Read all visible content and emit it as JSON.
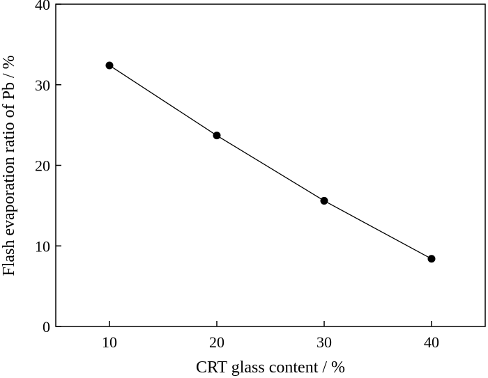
{
  "chart_data": {
    "type": "line",
    "title": "",
    "xlabel": "CRT glass content / %",
    "ylabel": "Flash evaporation ratio of Pb / %",
    "xlim": [
      5,
      45
    ],
    "ylim": [
      0,
      40
    ],
    "xticks": [
      10,
      20,
      30,
      40
    ],
    "yticks": [
      0,
      10,
      20,
      30,
      40
    ],
    "grid": false,
    "series": [
      {
        "x": [
          10,
          20,
          30,
          40
        ],
        "y": [
          32.4,
          23.7,
          15.6,
          8.4
        ],
        "color": "#000000",
        "marker": "circle"
      }
    ]
  }
}
